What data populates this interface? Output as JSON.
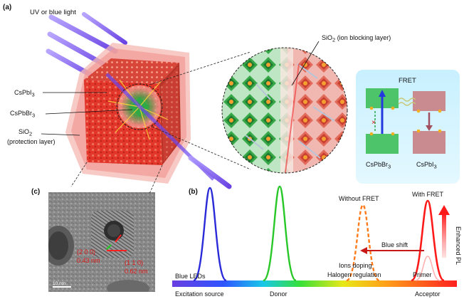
{
  "panel_a": {
    "label": "(a)",
    "light_label": "UV or blue light",
    "sio2_ion_label": "SiO",
    "sio2_ion_sub": "2",
    "sio2_ion_suffix": " (ion blocking layer)",
    "cspbi3_label": "CsPbI",
    "cspbi3_sub": "3",
    "cspbbr3_label": "CsPbBr",
    "cspbbr3_sub": "3",
    "sio2_prot_label": "SiO",
    "sio2_prot_sub": "2",
    "sio2_prot_suffix": "(protection layer)",
    "fret": {
      "title": "FRET",
      "donor": "CsPbBr",
      "donor_sub": "3",
      "acceptor": "CsPbI",
      "acceptor_sub": "3",
      "blocked_mark": "×"
    }
  },
  "panel_c": {
    "label": "(c)",
    "plane_1": "(2 0 0)",
    "spacing_1": "0.43 nm",
    "plane_2": "(1 1 0)",
    "spacing_2": "0.62 nm",
    "scale_bar": "10 nm"
  },
  "panel_b": {
    "label": "(b)",
    "blue_leds": "Blue LEDs",
    "excitation": "Excitation source",
    "donor": "Donor",
    "acceptor": "Acceptor",
    "without_fret": "Without FRET",
    "with_fret": "With FRET",
    "blue_shift": "Blue shift",
    "ions_doping": "Ions doping",
    "halogen": "Halogen regulation",
    "primer": "Primer",
    "enhanced_pl": "Enhanced PL"
  },
  "colors": {
    "blue_peak": "#2a2ad8",
    "green_peak": "#28c828",
    "orange_peak": "#ff7a1a",
    "red_peak": "#ff1a1a",
    "shell": "#f29a96",
    "core_red": "#e2362a",
    "core_green": "#33b84a",
    "beam": "#7a55ee"
  }
}
